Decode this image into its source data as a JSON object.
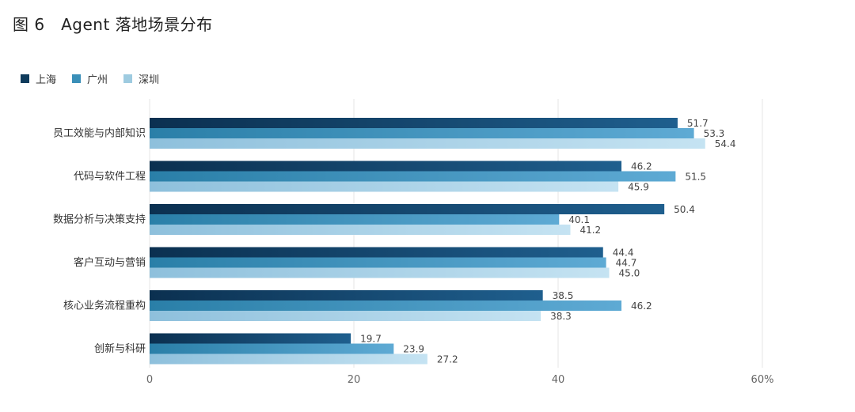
{
  "chart_data": {
    "type": "bar",
    "orientation": "horizontal",
    "title": "图 6　Agent 落地场景分布",
    "categories": [
      "员工效能与内部知识",
      "代码与软件工程",
      "数据分析与决策支持",
      "客户互动与营销",
      "核心业务流程重构",
      "创新与科研"
    ],
    "series": [
      {
        "name": "上海",
        "values": [
          51.7,
          46.2,
          50.4,
          44.4,
          38.5,
          19.7
        ],
        "color": "#0f3b5c",
        "gradient": [
          "#0b3050",
          "#1f5f8e"
        ]
      },
      {
        "name": "广州",
        "values": [
          53.3,
          51.5,
          40.1,
          44.7,
          46.2,
          23.9
        ],
        "color": "#3a8fb8",
        "gradient": [
          "#2a7fa8",
          "#5eaad4"
        ]
      },
      {
        "name": "深圳",
        "values": [
          54.4,
          45.9,
          41.2,
          45.0,
          38.3,
          27.2
        ],
        "color": "#9ecbe0",
        "gradient": [
          "#8ec0dc",
          "#c5e3f2"
        ]
      }
    ],
    "xlim": [
      0,
      60
    ],
    "ticks": [
      "0",
      "20",
      "40",
      "60%"
    ],
    "tick_values": [
      0,
      20,
      40,
      60
    ],
    "legend_position": "top-left",
    "grid": true
  }
}
